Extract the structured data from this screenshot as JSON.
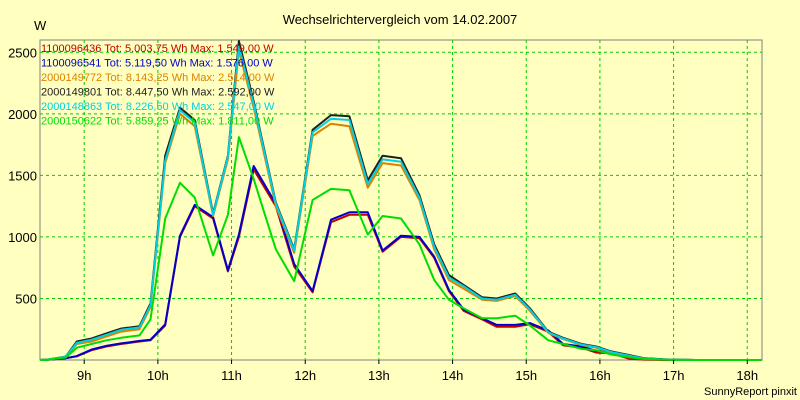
{
  "chart_data": {
    "type": "line",
    "title": "Wechselrichtervergleich vom 14.02.2007",
    "ylabel": "W",
    "xlabel": "",
    "footer": "SunnyReport pinxit",
    "x_tick_labels": [
      "9h",
      "10h",
      "11h",
      "12h",
      "13h",
      "14h",
      "15h",
      "16h",
      "17h",
      "18h"
    ],
    "y_ticks": [
      500,
      1000,
      1500,
      2000,
      2500
    ],
    "xlim": [
      8.4,
      18.2
    ],
    "ylim": [
      0,
      2600
    ],
    "grid": true,
    "legend_position": "top-left",
    "x": [
      8.4,
      8.5,
      8.75,
      8.9,
      9.1,
      9.3,
      9.5,
      9.75,
      9.9,
      10.1,
      10.3,
      10.5,
      10.75,
      10.95,
      11.1,
      11.3,
      11.6,
      11.85,
      12.1,
      12.35,
      12.6,
      12.85,
      13.05,
      13.3,
      13.55,
      13.75,
      13.95,
      14.15,
      14.4,
      14.6,
      14.85,
      15.05,
      15.3,
      15.5,
      15.75,
      15.95,
      16.15,
      16.4,
      16.6,
      16.85,
      17.05,
      17.3,
      17.55,
      17.8,
      18.05,
      18.2
    ],
    "series": [
      {
        "name": "1100096436",
        "legend": "1100096436 Tot: 5.003,75 Wh Max: 1.549,00 W",
        "color": "#c00000",
        "values": [
          0,
          2,
          15,
          30,
          80,
          110,
          130,
          150,
          160,
          280,
          1000,
          1250,
          1150,
          720,
          1000,
          1549,
          1250,
          760,
          550,
          1120,
          1180,
          1180,
          880,
          1000,
          990,
          830,
          560,
          400,
          330,
          270,
          270,
          290,
          230,
          120,
          100,
          60,
          55,
          10,
          3,
          0,
          0,
          0,
          0,
          0,
          0,
          0
        ]
      },
      {
        "name": "1100096541",
        "legend": "1100096541 Tot: 5.119,50 Wh Max: 1.576,00 W",
        "color": "#0000cc",
        "values": [
          0,
          2,
          15,
          32,
          85,
          115,
          135,
          155,
          165,
          290,
          1010,
          1260,
          1160,
          730,
          1020,
          1576,
          1270,
          780,
          560,
          1140,
          1200,
          1200,
          890,
          1010,
          1000,
          840,
          570,
          410,
          340,
          285,
          285,
          300,
          240,
          130,
          110,
          75,
          70,
          30,
          15,
          5,
          2,
          0,
          0,
          0,
          0,
          0
        ]
      },
      {
        "name": "2000149772",
        "legend": "2000149772 Tot: 8.143,25 Wh Max: 2.514,00 W",
        "color": "#e08000",
        "values": [
          0,
          3,
          25,
          130,
          150,
          190,
          230,
          250,
          430,
          1600,
          2000,
          1900,
          1170,
          1630,
          2514,
          2050,
          1250,
          870,
          1820,
          1920,
          1900,
          1400,
          1600,
          1580,
          1300,
          900,
          650,
          580,
          490,
          480,
          520,
          400,
          220,
          170,
          120,
          100,
          60,
          30,
          10,
          5,
          2,
          0,
          0,
          0,
          0,
          0
        ]
      },
      {
        "name": "2000149801",
        "legend": "2000149801 Tot: 8.447,50 Wh Max: 2.592,00 W",
        "color": "#202020",
        "values": [
          0,
          3,
          28,
          150,
          175,
          215,
          255,
          275,
          460,
          1660,
          2050,
          1950,
          1190,
          1660,
          2592,
          2100,
          1280,
          900,
          1870,
          1990,
          1980,
          1460,
          1660,
          1640,
          1340,
          940,
          690,
          610,
          510,
          500,
          540,
          420,
          230,
          180,
          130,
          110,
          70,
          40,
          15,
          6,
          2,
          0,
          0,
          0,
          0,
          0
        ]
      },
      {
        "name": "2000148863",
        "legend": "2000148863 Tot: 8.226,50 Wh Max: 2.547,00 W",
        "color": "#00d0e0",
        "values": [
          0,
          3,
          26,
          140,
          165,
          205,
          245,
          265,
          445,
          1620,
          2030,
          1930,
          1180,
          1650,
          2547,
          2080,
          1270,
          890,
          1850,
          1960,
          1950,
          1430,
          1630,
          1610,
          1320,
          920,
          670,
          600,
          500,
          490,
          530,
          410,
          225,
          175,
          125,
          105,
          65,
          35,
          12,
          5,
          2,
          0,
          0,
          0,
          0,
          0
        ]
      },
      {
        "name": "2000150622",
        "legend": "2000150622 Tot: 5.859,25 Wh Max: 1.811,00 W",
        "color": "#00dd00",
        "values": [
          0,
          2,
          20,
          100,
          130,
          160,
          180,
          200,
          330,
          1150,
          1440,
          1320,
          850,
          1180,
          1811,
          1470,
          900,
          640,
          1300,
          1390,
          1380,
          1020,
          1170,
          1150,
          940,
          650,
          490,
          420,
          340,
          340,
          360,
          280,
          160,
          130,
          90,
          80,
          45,
          22,
          8,
          3,
          1,
          0,
          0,
          0,
          0,
          0
        ]
      }
    ]
  }
}
